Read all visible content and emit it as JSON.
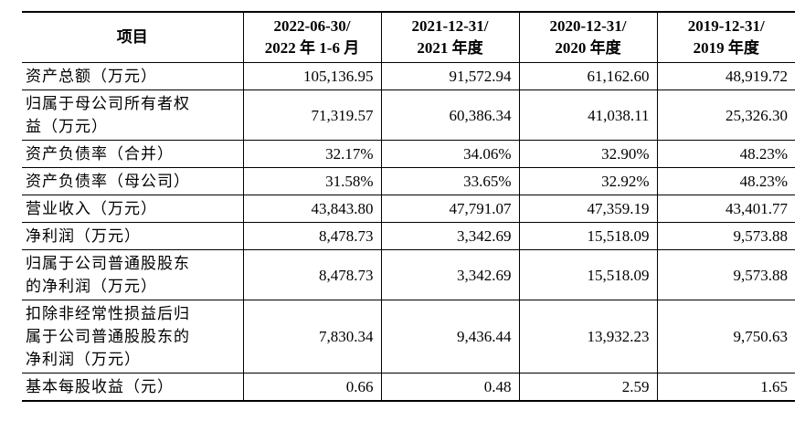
{
  "header": {
    "item": "项目",
    "cols": [
      "2022-06-30/\n2022 年 1-6 月",
      "2021-12-31/\n2021 年度",
      "2020-12-31/\n2020 年度",
      "2019-12-31/\n2019 年度"
    ]
  },
  "rows": [
    {
      "label": "资产总额（万元）",
      "values": [
        "105,136.95",
        "91,572.94",
        "61,162.60",
        "48,919.72"
      ]
    },
    {
      "label": "归属于母公司所有者权\n益（万元）",
      "values": [
        "71,319.57",
        "60,386.34",
        "41,038.11",
        "25,326.30"
      ]
    },
    {
      "label": "资产负债率（合并）",
      "values": [
        "32.17%",
        "34.06%",
        "32.90%",
        "48.23%"
      ]
    },
    {
      "label": "资产负债率（母公司）",
      "values": [
        "31.58%",
        "33.65%",
        "32.92%",
        "48.23%"
      ]
    },
    {
      "label": "营业收入（万元）",
      "values": [
        "43,843.80",
        "47,791.07",
        "47,359.19",
        "43,401.77"
      ]
    },
    {
      "label": "净利润（万元）",
      "values": [
        "8,478.73",
        "3,342.69",
        "15,518.09",
        "9,573.88"
      ]
    },
    {
      "label": "归属于公司普通股股东\n的净利润（万元）",
      "values": [
        "8,478.73",
        "3,342.69",
        "15,518.09",
        "9,573.88"
      ]
    },
    {
      "label": "扣除非经常性损益后归\n属于公司普通股股东的\n净利润（万元）",
      "values": [
        "7,830.34",
        "9,436.44",
        "13,932.23",
        "9,750.63"
      ]
    },
    {
      "label": "基本每股收益（元）",
      "values": [
        "0.66",
        "0.48",
        "2.59",
        "1.65"
      ]
    }
  ]
}
